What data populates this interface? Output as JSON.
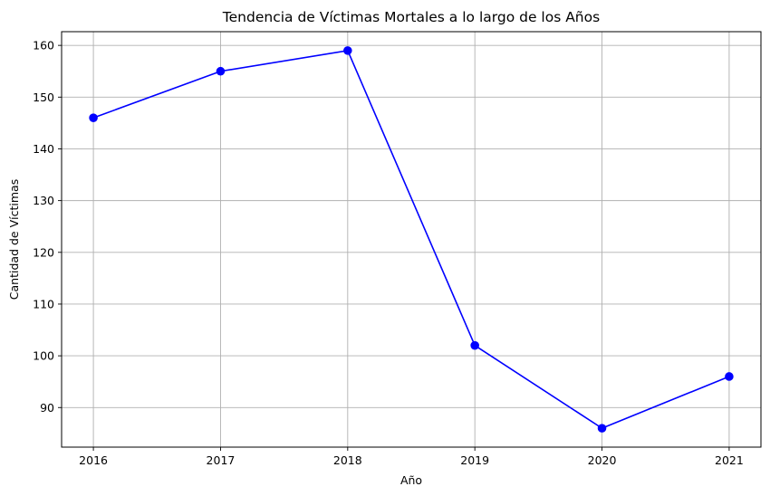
{
  "chart_data": {
    "type": "line",
    "title": "Tendencia de Víctimas Mortales a lo largo de los Años",
    "xlabel": "Año",
    "ylabel": "Cantidad de Víctimas",
    "x": [
      2016,
      2017,
      2018,
      2019,
      2020,
      2021
    ],
    "x_tick_labels": [
      "2016",
      "2017",
      "2018",
      "2019",
      "2020",
      "2021"
    ],
    "series": [
      {
        "values": [
          146,
          155,
          159,
          102,
          86,
          96
        ],
        "color": "#0000ff",
        "marker": "circle"
      }
    ],
    "y_ticks": [
      90,
      100,
      110,
      120,
      130,
      140,
      150,
      160
    ],
    "y_tick_labels": [
      "90",
      "100",
      "110",
      "120",
      "130",
      "140",
      "150",
      "160"
    ],
    "ylim": [
      82.35,
      162.65
    ],
    "xlim": [
      2015.75,
      2021.25
    ],
    "grid": true,
    "legend": "none"
  }
}
